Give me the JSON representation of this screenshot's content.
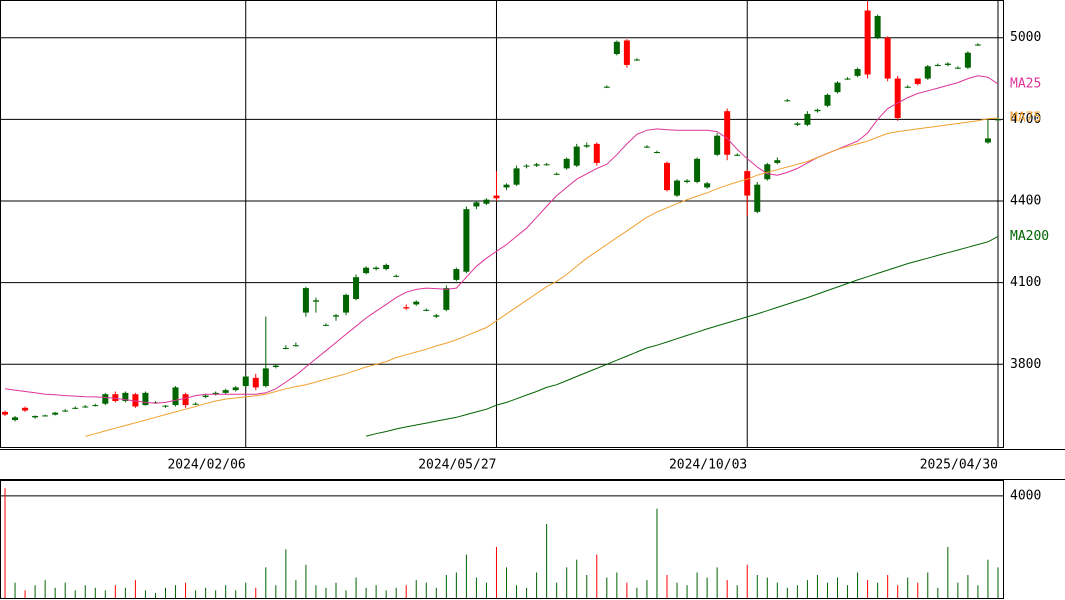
{
  "chart_data": [
    {
      "type": "candlestick",
      "categories": [
        null,
        null,
        null,
        null,
        null,
        null,
        null,
        null,
        null,
        null,
        null,
        null,
        null,
        null,
        null,
        null,
        null,
        null,
        null,
        null,
        null,
        null,
        null,
        null,
        "2024/02/06",
        null,
        null,
        null,
        null,
        null,
        null,
        null,
        null,
        null,
        null,
        null,
        null,
        null,
        null,
        null,
        null,
        null,
        null,
        null,
        null,
        null,
        null,
        null,
        null,
        "2024/05/27",
        null,
        null,
        null,
        null,
        null,
        null,
        null,
        null,
        null,
        null,
        null,
        null,
        null,
        null,
        null,
        null,
        null,
        null,
        null,
        null,
        null,
        null,
        null,
        null,
        "2024/10/03",
        null,
        null,
        null,
        null,
        null,
        null,
        null,
        null,
        null,
        null,
        null,
        null,
        null,
        null,
        null,
        null,
        null,
        null,
        null,
        null,
        null,
        null,
        null,
        null,
        "2025/04/30"
      ],
      "open": [
        3625,
        3595,
        3640,
        3605,
        3610,
        3615,
        3630,
        3640,
        3645,
        3650,
        3655,
        3690,
        3665,
        3690,
        3650,
        3660,
        3645,
        3650,
        3690,
        3655,
        3680,
        3690,
        3695,
        3705,
        3720,
        3750,
        3720,
        3790,
        3860,
        3870,
        3990,
        4030,
        3945,
        3975,
        3990,
        4040,
        4135,
        4150,
        4150,
        4125,
        4010,
        4020,
        4000,
        3975,
        4000,
        4110,
        4140,
        4380,
        4390,
        4420,
        4450,
        4460,
        4530,
        4530,
        4535,
        4500,
        4520,
        4530,
        4600,
        4610,
        4820,
        4940,
        4990,
        4920,
        4600,
        4580,
        4540,
        4420,
        4470,
        4470,
        4450,
        4570,
        4730,
        4570,
        4510,
        4360,
        4480,
        4540,
        4770,
        4680,
        4680,
        4730,
        4750,
        4800,
        4850,
        4860,
        5100,
        5000,
        5000,
        4850,
        4820,
        4850,
        4850,
        4900,
        4900,
        4890,
        4890,
        4975,
        4615,
        4700
      ],
      "high": [
        3630,
        3610,
        3645,
        3612,
        3615,
        3625,
        3635,
        3645,
        3650,
        3655,
        3695,
        3700,
        3700,
        3695,
        3700,
        3665,
        3650,
        3720,
        3695,
        3660,
        3690,
        3700,
        3710,
        3720,
        3760,
        3765,
        3975,
        3800,
        3870,
        3880,
        4085,
        4045,
        3950,
        3985,
        4060,
        4130,
        4160,
        4160,
        4170,
        4130,
        4020,
        4035,
        4005,
        3985,
        4090,
        4155,
        4380,
        4400,
        4410,
        4510,
        4465,
        4530,
        4535,
        4540,
        4540,
        4505,
        4560,
        4610,
        4615,
        4615,
        4825,
        4990,
        4995,
        4925,
        4605,
        4585,
        4545,
        4480,
        4480,
        4560,
        4470,
        4650,
        4740,
        4575,
        4515,
        4470,
        4540,
        4560,
        4775,
        4690,
        4730,
        4740,
        4795,
        4840,
        4855,
        4890,
        5135,
        5085,
        5005,
        4860,
        4825,
        4850,
        4900,
        4905,
        4910,
        4895,
        4950,
        4980,
        4700,
        4705
      ],
      "low": [
        3610,
        3590,
        3625,
        3600,
        3608,
        3612,
        3625,
        3635,
        3640,
        3645,
        3650,
        3660,
        3660,
        3640,
        3648,
        3655,
        3640,
        3645,
        3640,
        3650,
        3675,
        3685,
        3690,
        3700,
        3715,
        3705,
        3715,
        3785,
        3855,
        3865,
        3975,
        3990,
        3940,
        3960,
        3980,
        4035,
        4130,
        4145,
        4145,
        4120,
        4000,
        4015,
        3995,
        3970,
        3995,
        4105,
        4135,
        4370,
        4385,
        4400,
        4440,
        4455,
        4520,
        4525,
        4530,
        4495,
        4515,
        4525,
        4595,
        4530,
        4815,
        4935,
        4890,
        4915,
        4595,
        4575,
        4435,
        4415,
        4465,
        4465,
        4445,
        4565,
        4550,
        4565,
        4345,
        4355,
        4475,
        4535,
        4765,
        4675,
        4675,
        4725,
        4745,
        4795,
        4845,
        4855,
        4850,
        4995,
        4840,
        4695,
        4815,
        4825,
        4845,
        4895,
        4895,
        4885,
        4885,
        4970,
        4610,
        4695
      ],
      "close": [
        3615,
        3605,
        3630,
        3610,
        3612,
        3622,
        3630,
        3640,
        3645,
        3650,
        3690,
        3665,
        3695,
        3645,
        3695,
        3660,
        3648,
        3715,
        3650,
        3655,
        3685,
        3695,
        3705,
        3715,
        3755,
        3715,
        3785,
        3795,
        3860,
        3870,
        4080,
        4035,
        3945,
        3980,
        4055,
        4120,
        4155,
        4155,
        4165,
        4125,
        4005,
        4030,
        4000,
        3980,
        4080,
        4150,
        4370,
        4395,
        4405,
        4410,
        4460,
        4520,
        4530,
        4535,
        4535,
        4500,
        4555,
        4600,
        4605,
        4540,
        4820,
        4985,
        4900,
        4920,
        4600,
        4580,
        4440,
        4475,
        4475,
        4555,
        4465,
        4640,
        4570,
        4570,
        4420,
        4460,
        4535,
        4550,
        4770,
        4685,
        4720,
        4735,
        4790,
        4835,
        4850,
        4885,
        4865,
        5080,
        4850,
        4705,
        4820,
        4830,
        4895,
        4900,
        4905,
        4890,
        4945,
        4975,
        4630,
        4700
      ],
      "up_color": "#006400",
      "down_color": "#ff0000",
      "series": [
        {
          "name": "MA25",
          "color": "#dd3399",
          "values": [
            3710,
            3705,
            3700,
            3695,
            3690,
            3688,
            3685,
            3683,
            3681,
            3680,
            3678,
            3675,
            3670,
            3665,
            3660,
            3657,
            3660,
            3668,
            3675,
            3685,
            3690,
            3690,
            3690,
            3690,
            3690,
            3690,
            3695,
            3710,
            3735,
            3760,
            3790,
            3820,
            3850,
            3880,
            3910,
            3940,
            3970,
            3995,
            4020,
            4045,
            4065,
            4075,
            4080,
            4078,
            4075,
            4080,
            4120,
            4160,
            4190,
            4215,
            4240,
            4270,
            4300,
            4340,
            4380,
            4420,
            4450,
            4480,
            4500,
            4520,
            4535,
            4570,
            4610,
            4645,
            4660,
            4665,
            4662,
            4660,
            4660,
            4660,
            4660,
            4655,
            4630,
            4590,
            4555,
            4525,
            4500,
            4495,
            4505,
            4520,
            4540,
            4560,
            4575,
            4590,
            4605,
            4620,
            4650,
            4700,
            4740,
            4760,
            4780,
            4795,
            4805,
            4815,
            4825,
            4835,
            4850,
            4860,
            4855,
            4830
          ]
        },
        {
          "name": "MA75",
          "color": "#f0a030",
          "values": [
            null,
            null,
            null,
            null,
            null,
            null,
            null,
            null,
            3535,
            3545,
            3555,
            3565,
            3575,
            3585,
            3595,
            3605,
            3615,
            3625,
            3635,
            3645,
            3655,
            3665,
            3672,
            3676,
            3680,
            3684,
            3690,
            3700,
            3710,
            3718,
            3725,
            3735,
            3745,
            3755,
            3765,
            3778,
            3790,
            3800,
            3810,
            3825,
            3835,
            3845,
            3855,
            3867,
            3878,
            3890,
            3905,
            3920,
            3935,
            3960,
            3985,
            4010,
            4035,
            4060,
            4085,
            4105,
            4130,
            4160,
            4190,
            4215,
            4240,
            4265,
            4290,
            4315,
            4340,
            4360,
            4375,
            4390,
            4405,
            4418,
            4430,
            4445,
            4458,
            4470,
            4480,
            4495,
            4505,
            4515,
            4525,
            4535,
            4545,
            4560,
            4575,
            4590,
            4600,
            4610,
            4620,
            4635,
            4648,
            4655,
            4660,
            4665,
            4670,
            4675,
            4680,
            4685,
            4690,
            4695,
            4702,
            4705
          ]
        },
        {
          "name": "MA200",
          "color": "#006400",
          "values": [
            null,
            null,
            null,
            null,
            null,
            null,
            null,
            null,
            null,
            null,
            null,
            null,
            null,
            null,
            null,
            null,
            null,
            null,
            null,
            null,
            null,
            null,
            null,
            null,
            null,
            null,
            null,
            null,
            null,
            null,
            null,
            null,
            null,
            null,
            null,
            null,
            3536,
            3545,
            3553,
            3562,
            3570,
            3577,
            3584,
            3591,
            3598,
            3605,
            3615,
            3625,
            3635,
            3650,
            3660,
            3673,
            3687,
            3700,
            3715,
            3725,
            3740,
            3755,
            3770,
            3785,
            3800,
            3815,
            3830,
            3845,
            3860,
            3870,
            3882,
            3894,
            3906,
            3918,
            3930,
            3941,
            3952,
            3963,
            3974,
            3985,
            3997,
            4009,
            4021,
            4033,
            4045,
            4058,
            4071,
            4084,
            4097,
            4110,
            4122,
            4134,
            4146,
            4158,
            4170,
            4180,
            4190,
            4200,
            4210,
            4220,
            4230,
            4240,
            4250,
            4270
          ]
        }
      ],
      "ylim": [
        3496,
        5135
      ],
      "yticks": [
        3800,
        4100,
        4400,
        4700,
        5000
      ],
      "grid": true
    },
    {
      "type": "bar",
      "values": [
        4300,
        600,
        300,
        500,
        700,
        400,
        600,
        300,
        500,
        400,
        300,
        500,
        400,
        700,
        300,
        200,
        400,
        500,
        600,
        300,
        400,
        300,
        500,
        300,
        600,
        400,
        1200,
        500,
        1900,
        700,
        1300,
        500,
        400,
        600,
        300,
        800,
        400,
        500,
        300,
        400,
        500,
        700,
        600,
        400,
        900,
        1000,
        1700,
        800,
        600,
        2000,
        1200,
        500,
        400,
        1000,
        2900,
        600,
        1200,
        1500,
        900,
        1700,
        800,
        1000,
        600,
        400,
        700,
        3500,
        900,
        600,
        500,
        1000,
        800,
        1200,
        700,
        500,
        1300,
        900,
        800,
        600,
        400,
        500,
        700,
        900,
        600,
        800,
        500,
        1000,
        700,
        600,
        900,
        500,
        800,
        600,
        1000,
        400,
        2000,
        600,
        900,
        500,
        1500,
        1200
      ],
      "ylim": [
        0,
        4580
      ],
      "yticks": [
        4000
      ],
      "grid": true
    }
  ]
}
